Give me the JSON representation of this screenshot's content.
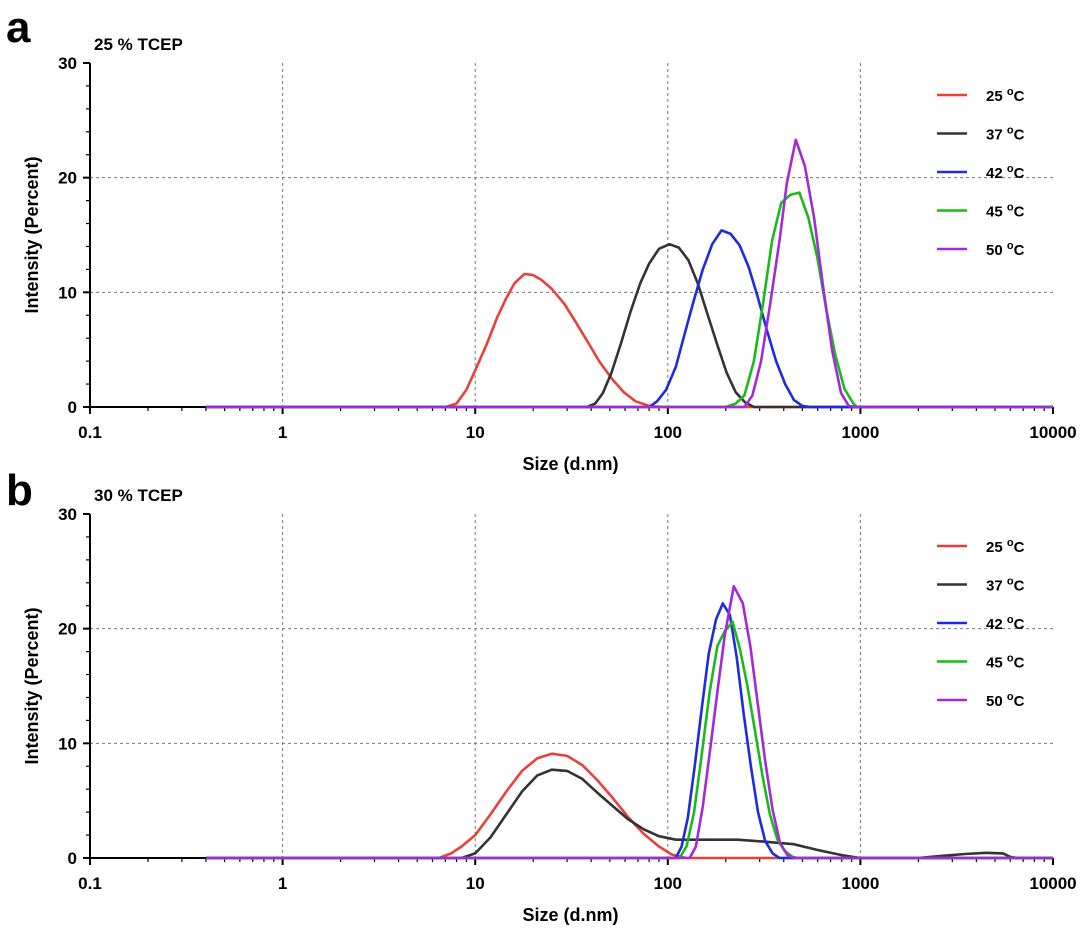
{
  "chart_data": [
    {
      "type": "line",
      "panel_label": "a",
      "title": "25 % TCEP",
      "xlabel": "Size (d.nm)",
      "ylabel": "Intensity (Percent)",
      "xscale": "log",
      "xlim": [
        0.1,
        10000
      ],
      "ylim": [
        0,
        30
      ],
      "xticks": [
        0.1,
        1,
        10,
        100,
        1000,
        10000
      ],
      "xtick_labels": [
        "0.1",
        "1",
        "10",
        "100",
        "1000",
        "10000"
      ],
      "yticks": [
        0,
        10,
        20,
        30
      ],
      "ytick_labels": [
        "0",
        "10",
        "20",
        "30"
      ],
      "grid": true,
      "legend_position": "top-right",
      "series": [
        {
          "name": "25",
          "color": "#e8413c",
          "points": [
            [
              0.4,
              0
            ],
            [
              7,
              0
            ],
            [
              8,
              0.3
            ],
            [
              9,
              1.5
            ],
            [
              10,
              3.2
            ],
            [
              11.5,
              5.5
            ],
            [
              13,
              7.8
            ],
            [
              14.5,
              9.5
            ],
            [
              16,
              10.8
            ],
            [
              18,
              11.6
            ],
            [
              20,
              11.5
            ],
            [
              22,
              11.1
            ],
            [
              25,
              10.3
            ],
            [
              29,
              9
            ],
            [
              33,
              7.5
            ],
            [
              38,
              5.8
            ],
            [
              44,
              4
            ],
            [
              51,
              2.5
            ],
            [
              59,
              1.3
            ],
            [
              68,
              0.5
            ],
            [
              80,
              0.1
            ],
            [
              95,
              0
            ],
            [
              6000,
              0
            ]
          ]
        },
        {
          "name": "37",
          "color": "#333333",
          "points": [
            [
              0.4,
              0
            ],
            [
              38,
              0
            ],
            [
              42,
              0.3
            ],
            [
              46,
              1.2
            ],
            [
              51,
              3
            ],
            [
              57,
              5.5
            ],
            [
              64,
              8.3
            ],
            [
              72,
              10.8
            ],
            [
              80,
              12.5
            ],
            [
              90,
              13.8
            ],
            [
              102,
              14.2
            ],
            [
              114,
              13.9
            ],
            [
              128,
              12.8
            ],
            [
              143,
              10.8
            ],
            [
              160,
              8.2
            ],
            [
              180,
              5.5
            ],
            [
              202,
              3
            ],
            [
              225,
              1.3
            ],
            [
              252,
              0.4
            ],
            [
              280,
              0
            ],
            [
              10000,
              0
            ]
          ]
        },
        {
          "name": "42",
          "color": "#1e2be0",
          "points": [
            [
              0.4,
              0
            ],
            [
              80,
              0
            ],
            [
              88,
              0.5
            ],
            [
              98,
              1.5
            ],
            [
              110,
              3.5
            ],
            [
              122,
              6.3
            ],
            [
              136,
              9.2
            ],
            [
              152,
              12
            ],
            [
              170,
              14.2
            ],
            [
              190,
              15.4
            ],
            [
              212,
              15.1
            ],
            [
              236,
              14.1
            ],
            [
              263,
              12.2
            ],
            [
              293,
              9.6
            ],
            [
              327,
              6.7
            ],
            [
              365,
              4
            ],
            [
              407,
              2
            ],
            [
              452,
              0.6
            ],
            [
              500,
              0.1
            ],
            [
              550,
              0
            ],
            [
              10000,
              0
            ]
          ]
        },
        {
          "name": "45",
          "color": "#19bb19",
          "points": [
            [
              0.4,
              0
            ],
            [
              200,
              0
            ],
            [
              225,
              0.3
            ],
            [
              250,
              1
            ],
            [
              280,
              4
            ],
            [
              312,
              9
            ],
            [
              348,
              14.5
            ],
            [
              388,
              17.8
            ],
            [
              432,
              18.5
            ],
            [
              482,
              18.7
            ],
            [
              537,
              16.5
            ],
            [
              598,
              13
            ],
            [
              665,
              8.5
            ],
            [
              742,
              4.5
            ],
            [
              826,
              1.6
            ],
            [
              920,
              0.3
            ],
            [
              960,
              0
            ],
            [
              10000,
              0
            ]
          ]
        },
        {
          "name": "50",
          "color": "#a12bd8",
          "points": [
            [
              0.4,
              0
            ],
            [
              250,
              0
            ],
            [
              275,
              1
            ],
            [
              305,
              4
            ],
            [
              340,
              9
            ],
            [
              380,
              14.5
            ],
            [
              415,
              19.5
            ],
            [
              462,
              23.3
            ],
            [
              515,
              21
            ],
            [
              575,
              16.5
            ],
            [
              640,
              10.5
            ],
            [
              712,
              5
            ],
            [
              794,
              1.2
            ],
            [
              870,
              0.1
            ],
            [
              950,
              0
            ],
            [
              10000,
              0
            ]
          ]
        }
      ],
      "legend": [
        {
          "label": "25 °C"
        },
        {
          "label": "37 °C"
        },
        {
          "label": "42 °C"
        },
        {
          "label": "45 °C"
        },
        {
          "label": "50 °C"
        }
      ]
    },
    {
      "type": "line",
      "panel_label": "b",
      "title": "30 % TCEP",
      "xlabel": "Size (d.nm)",
      "ylabel": "Intensity (Percent)",
      "xscale": "log",
      "xlim": [
        0.1,
        10000
      ],
      "ylim": [
        0,
        30
      ],
      "xticks": [
        0.1,
        1,
        10,
        100,
        1000,
        10000
      ],
      "xtick_labels": [
        "0.1",
        "1",
        "10",
        "100",
        "1000",
        "10000"
      ],
      "yticks": [
        0,
        10,
        20,
        30
      ],
      "ytick_labels": [
        "0",
        "10",
        "20",
        "30"
      ],
      "grid": true,
      "legend_position": "top-right",
      "series": [
        {
          "name": "25",
          "color": "#e8413c",
          "points": [
            [
              0.4,
              0
            ],
            [
              6.5,
              0
            ],
            [
              7.5,
              0.4
            ],
            [
              8.5,
              1
            ],
            [
              10,
              2
            ],
            [
              12,
              3.8
            ],
            [
              14.5,
              5.8
            ],
            [
              17.5,
              7.6
            ],
            [
              21,
              8.7
            ],
            [
              25,
              9.1
            ],
            [
              30,
              8.9
            ],
            [
              36,
              8.1
            ],
            [
              43,
              6.8
            ],
            [
              52,
              5.2
            ],
            [
              62,
              3.6
            ],
            [
              75,
              2.1
            ],
            [
              90,
              1
            ],
            [
              105,
              0.3
            ],
            [
              125,
              0
            ],
            [
              10000,
              0
            ]
          ]
        },
        {
          "name": "37",
          "color": "#333333",
          "points": [
            [
              0.4,
              0
            ],
            [
              8.5,
              0
            ],
            [
              10,
              0.4
            ],
            [
              12,
              1.8
            ],
            [
              14.5,
              3.8
            ],
            [
              17.5,
              5.8
            ],
            [
              21,
              7.2
            ],
            [
              25,
              7.7
            ],
            [
              30,
              7.6
            ],
            [
              36,
              6.9
            ],
            [
              43,
              5.7
            ],
            [
              52,
              4.5
            ],
            [
              62,
              3.4
            ],
            [
              75,
              2.5
            ],
            [
              90,
              1.9
            ],
            [
              110,
              1.6
            ],
            [
              150,
              1.6
            ],
            [
              230,
              1.6
            ],
            [
              330,
              1.4
            ],
            [
              450,
              1.2
            ],
            [
              600,
              0.7
            ],
            [
              800,
              0.25
            ],
            [
              1000,
              0
            ],
            [
              2000,
              0
            ],
            [
              2500,
              0.15
            ],
            [
              3500,
              0.35
            ],
            [
              4500,
              0.45
            ],
            [
              5500,
              0.4
            ],
            [
              6000,
              0.1
            ],
            [
              6500,
              0
            ],
            [
              10000,
              0
            ]
          ]
        },
        {
          "name": "42",
          "color": "#1e2be0",
          "points": [
            [
              0.4,
              0
            ],
            [
              110,
              0
            ],
            [
              118,
              1
            ],
            [
              127,
              3.5
            ],
            [
              138,
              8
            ],
            [
              150,
              13
            ],
            [
              163,
              17.8
            ],
            [
              178,
              20.8
            ],
            [
              193,
              22.2
            ],
            [
              210,
              21.2
            ],
            [
              228,
              17.5
            ],
            [
              248,
              12.5
            ],
            [
              270,
              8
            ],
            [
              294,
              4
            ],
            [
              320,
              1.5
            ],
            [
              350,
              0.4
            ],
            [
              380,
              0
            ],
            [
              10000,
              0
            ]
          ]
        },
        {
          "name": "45",
          "color": "#19bb19",
          "points": [
            [
              0.4,
              0
            ],
            [
              115,
              0
            ],
            [
              125,
              1
            ],
            [
              137,
              4
            ],
            [
              150,
              9
            ],
            [
              165,
              14.5
            ],
            [
              181,
              18.5
            ],
            [
              198,
              19.8
            ],
            [
              217,
              20.6
            ],
            [
              237,
              18.2
            ],
            [
              259,
              15
            ],
            [
              283,
              11.2
            ],
            [
              310,
              7.2
            ],
            [
              339,
              3.8
            ],
            [
              371,
              1.6
            ],
            [
              405,
              0.6
            ],
            [
              445,
              0.1
            ],
            [
              470,
              0
            ],
            [
              10000,
              0
            ]
          ]
        },
        {
          "name": "50",
          "color": "#a12bd8",
          "points": [
            [
              0.4,
              0
            ],
            [
              130,
              0
            ],
            [
              140,
              1
            ],
            [
              152,
              4.5
            ],
            [
              166,
              9.5
            ],
            [
              181,
              14.5
            ],
            [
              198,
              19.5
            ],
            [
              220,
              23.7
            ],
            [
              245,
              22.2
            ],
            [
              268,
              18.5
            ],
            [
              293,
              13.5
            ],
            [
              320,
              8.5
            ],
            [
              350,
              4.2
            ],
            [
              383,
              1.3
            ],
            [
              420,
              0.2
            ],
            [
              460,
              0
            ],
            [
              10000,
              0
            ]
          ]
        }
      ],
      "legend": [
        {
          "label": "25 °C"
        },
        {
          "label": "37 °C"
        },
        {
          "label": "42 °C"
        },
        {
          "label": "45 °C"
        },
        {
          "label": "50 °C"
        }
      ]
    }
  ]
}
